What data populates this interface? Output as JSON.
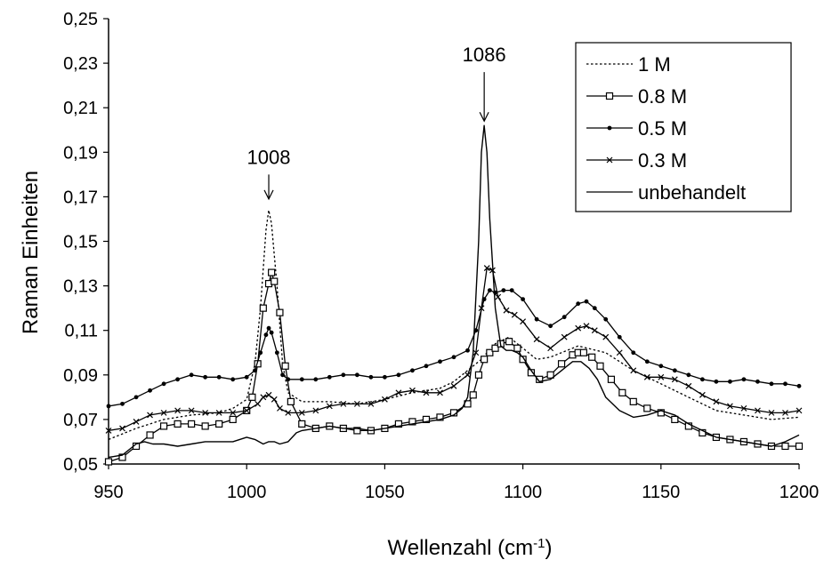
{
  "chart_data": {
    "type": "line",
    "title": "",
    "xlabel": "Wellenzahl (cm",
    "xlabel_sup": "-1",
    "xlabel_close": ")",
    "ylabel": "Raman Einheiten",
    "xlim": [
      950,
      1200
    ],
    "ylim": [
      0.05,
      0.25
    ],
    "xticks": [
      950,
      1000,
      1050,
      1100,
      1150,
      1200
    ],
    "xtick_labels": [
      "950",
      "1000",
      "1050",
      "1100",
      "1150",
      "1200"
    ],
    "yticks": [
      0.05,
      0.07,
      0.09,
      0.11,
      0.13,
      0.15,
      0.17,
      0.19,
      0.21,
      0.23,
      0.25
    ],
    "ytick_labels": [
      "0,05",
      "0,07",
      "0,09",
      "0,11",
      "0,13",
      "0,15",
      "0,17",
      "0,19",
      "0,21",
      "0,23",
      "0,25"
    ],
    "grid": false,
    "legend_position": "top-right",
    "annotations": [
      {
        "text": "1008",
        "x": 1008,
        "arrow_from_y": 0.18,
        "arrow_to_y": 0.169
      },
      {
        "text": "1086",
        "x": 1086,
        "arrow_from_y": 0.226,
        "arrow_to_y": 0.204
      }
    ],
    "series": [
      {
        "name": "1 M",
        "style": "dotted",
        "marker": "none",
        "x": [
          950,
          960,
          970,
          980,
          990,
          995,
          1000,
          1003,
          1005,
          1007,
          1008,
          1009,
          1011,
          1013,
          1015,
          1020,
          1030,
          1040,
          1050,
          1060,
          1070,
          1075,
          1080,
          1085,
          1087,
          1090,
          1095,
          1100,
          1105,
          1110,
          1120,
          1130,
          1140,
          1150,
          1160,
          1170,
          1180,
          1190,
          1200
        ],
        "y": [
          0.061,
          0.066,
          0.07,
          0.072,
          0.073,
          0.075,
          0.079,
          0.095,
          0.12,
          0.155,
          0.164,
          0.158,
          0.13,
          0.095,
          0.082,
          0.078,
          0.078,
          0.077,
          0.079,
          0.082,
          0.084,
          0.087,
          0.092,
          0.097,
          0.1,
          0.104,
          0.107,
          0.102,
          0.097,
          0.098,
          0.103,
          0.1,
          0.092,
          0.086,
          0.08,
          0.074,
          0.072,
          0.07,
          0.071
        ]
      },
      {
        "name": "0.8 M",
        "style": "solid",
        "marker": "square",
        "x": [
          950,
          955,
          960,
          965,
          970,
          975,
          980,
          985,
          990,
          995,
          1000,
          1002,
          1004,
          1006,
          1008,
          1009,
          1010,
          1012,
          1014,
          1016,
          1020,
          1025,
          1030,
          1035,
          1040,
          1045,
          1050,
          1055,
          1060,
          1065,
          1070,
          1075,
          1080,
          1082,
          1084,
          1086,
          1088,
          1090,
          1092,
          1095,
          1098,
          1100,
          1103,
          1106,
          1110,
          1114,
          1118,
          1120,
          1122,
          1125,
          1128,
          1132,
          1136,
          1140,
          1145,
          1150,
          1155,
          1160,
          1165,
          1170,
          1175,
          1180,
          1185,
          1190,
          1195,
          1200
        ],
        "y": [
          0.051,
          0.053,
          0.058,
          0.063,
          0.067,
          0.068,
          0.068,
          0.067,
          0.068,
          0.07,
          0.074,
          0.08,
          0.095,
          0.12,
          0.131,
          0.136,
          0.132,
          0.118,
          0.094,
          0.078,
          0.068,
          0.066,
          0.067,
          0.066,
          0.065,
          0.065,
          0.066,
          0.068,
          0.069,
          0.07,
          0.071,
          0.073,
          0.077,
          0.081,
          0.09,
          0.097,
          0.1,
          0.102,
          0.104,
          0.105,
          0.102,
          0.097,
          0.091,
          0.088,
          0.09,
          0.095,
          0.099,
          0.1,
          0.1,
          0.098,
          0.094,
          0.088,
          0.082,
          0.078,
          0.075,
          0.073,
          0.07,
          0.067,
          0.064,
          0.062,
          0.061,
          0.06,
          0.059,
          0.058,
          0.058,
          0.058
        ]
      },
      {
        "name": "0.5 M",
        "style": "solid",
        "marker": "dot",
        "x": [
          950,
          955,
          960,
          965,
          970,
          975,
          980,
          985,
          990,
          995,
          1000,
          1003,
          1005,
          1007,
          1008,
          1009,
          1011,
          1013,
          1015,
          1020,
          1025,
          1030,
          1035,
          1040,
          1045,
          1050,
          1055,
          1060,
          1065,
          1070,
          1075,
          1080,
          1083,
          1086,
          1088,
          1090,
          1093,
          1096,
          1100,
          1105,
          1110,
          1115,
          1120,
          1123,
          1126,
          1130,
          1135,
          1140,
          1145,
          1150,
          1155,
          1160,
          1165,
          1170,
          1175,
          1180,
          1185,
          1190,
          1195,
          1200
        ],
        "y": [
          0.076,
          0.077,
          0.08,
          0.083,
          0.086,
          0.088,
          0.09,
          0.089,
          0.089,
          0.088,
          0.089,
          0.092,
          0.1,
          0.108,
          0.111,
          0.109,
          0.1,
          0.09,
          0.088,
          0.088,
          0.088,
          0.089,
          0.09,
          0.09,
          0.089,
          0.089,
          0.09,
          0.092,
          0.094,
          0.096,
          0.098,
          0.101,
          0.11,
          0.124,
          0.128,
          0.127,
          0.128,
          0.128,
          0.124,
          0.115,
          0.112,
          0.116,
          0.122,
          0.123,
          0.12,
          0.115,
          0.107,
          0.1,
          0.096,
          0.094,
          0.092,
          0.09,
          0.088,
          0.087,
          0.087,
          0.088,
          0.087,
          0.086,
          0.086,
          0.085
        ]
      },
      {
        "name": "0.3 M",
        "style": "solid",
        "marker": "x",
        "x": [
          950,
          955,
          960,
          965,
          970,
          975,
          980,
          985,
          990,
          995,
          1000,
          1004,
          1006,
          1008,
          1010,
          1012,
          1015,
          1020,
          1025,
          1030,
          1035,
          1040,
          1045,
          1050,
          1055,
          1060,
          1065,
          1070,
          1075,
          1080,
          1083,
          1085,
          1087,
          1089,
          1091,
          1094,
          1097,
          1100,
          1105,
          1110,
          1115,
          1120,
          1123,
          1126,
          1130,
          1135,
          1140,
          1145,
          1150,
          1155,
          1160,
          1165,
          1170,
          1175,
          1180,
          1185,
          1190,
          1195,
          1200
        ],
        "y": [
          0.065,
          0.066,
          0.069,
          0.072,
          0.073,
          0.074,
          0.074,
          0.073,
          0.073,
          0.073,
          0.074,
          0.077,
          0.08,
          0.081,
          0.079,
          0.075,
          0.073,
          0.073,
          0.074,
          0.076,
          0.077,
          0.077,
          0.077,
          0.079,
          0.082,
          0.083,
          0.082,
          0.082,
          0.085,
          0.09,
          0.1,
          0.12,
          0.138,
          0.137,
          0.125,
          0.119,
          0.117,
          0.114,
          0.106,
          0.102,
          0.107,
          0.111,
          0.112,
          0.11,
          0.107,
          0.1,
          0.092,
          0.089,
          0.089,
          0.088,
          0.085,
          0.081,
          0.078,
          0.076,
          0.075,
          0.074,
          0.073,
          0.073,
          0.074
        ]
      },
      {
        "name": "unbehandelt",
        "style": "solid",
        "marker": "none",
        "x": [
          950,
          955,
          958,
          960,
          963,
          966,
          970,
          975,
          980,
          985,
          990,
          995,
          1000,
          1003,
          1006,
          1008,
          1010,
          1012,
          1015,
          1018,
          1020,
          1025,
          1030,
          1035,
          1040,
          1045,
          1050,
          1055,
          1060,
          1065,
          1070,
          1075,
          1078,
          1080,
          1082,
          1084,
          1085,
          1086,
          1087,
          1088,
          1090,
          1092,
          1094,
          1096,
          1098,
          1100,
          1103,
          1106,
          1110,
          1114,
          1118,
          1121,
          1124,
          1127,
          1130,
          1135,
          1140,
          1145,
          1150,
          1155,
          1160,
          1165,
          1170,
          1175,
          1180,
          1185,
          1190,
          1195,
          1200
        ],
        "y": [
          0.053,
          0.054,
          0.057,
          0.059,
          0.06,
          0.059,
          0.059,
          0.058,
          0.059,
          0.06,
          0.06,
          0.06,
          0.062,
          0.061,
          0.059,
          0.06,
          0.06,
          0.059,
          0.06,
          0.064,
          0.065,
          0.066,
          0.067,
          0.066,
          0.066,
          0.065,
          0.066,
          0.067,
          0.068,
          0.069,
          0.07,
          0.072,
          0.075,
          0.08,
          0.1,
          0.15,
          0.19,
          0.202,
          0.19,
          0.16,
          0.12,
          0.103,
          0.101,
          0.101,
          0.1,
          0.098,
          0.092,
          0.087,
          0.088,
          0.092,
          0.096,
          0.096,
          0.093,
          0.088,
          0.08,
          0.074,
          0.071,
          0.072,
          0.074,
          0.072,
          0.068,
          0.065,
          0.062,
          0.061,
          0.06,
          0.059,
          0.058,
          0.06,
          0.063
        ]
      }
    ]
  }
}
